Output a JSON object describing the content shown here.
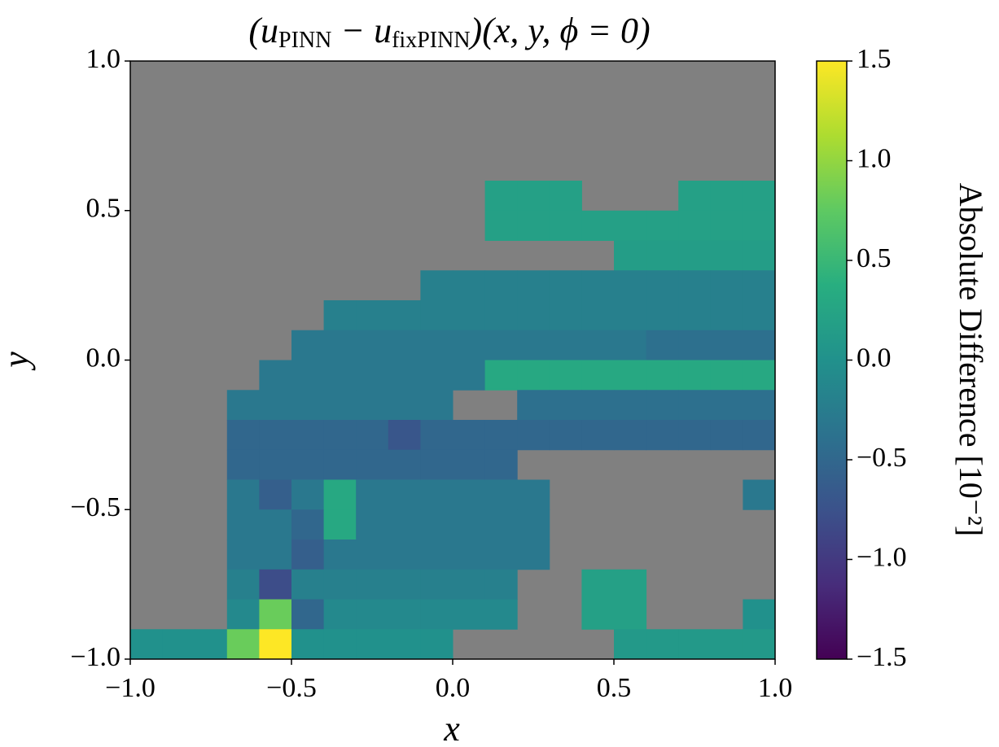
{
  "chart_data": {
    "type": "heatmap",
    "title": [
      "(u",
      "PINN",
      " − u",
      "fixPINN",
      ")(x, y, ϕ = 0)"
    ],
    "x_label": "x",
    "y_label": "y",
    "colorbar_label": "Absolute Difference [10⁻²]",
    "colormap": "viridis",
    "nan_color": "#808080",
    "xlim": [
      -1.0,
      1.0
    ],
    "ylim": [
      -1.0,
      1.0
    ],
    "clim": [
      -1.5,
      1.5
    ],
    "xticks": [
      {
        "value": -1.0,
        "label": "−1.0"
      },
      {
        "value": -0.5,
        "label": "−0.5"
      },
      {
        "value": 0.0,
        "label": "0.0"
      },
      0.5,
      {
        "value": 1.0,
        "label": "1.0"
      }
    ],
    "yticks": [
      {
        "value": -1.0,
        "label": "−1.0"
      },
      {
        "value": -0.5,
        "label": "−0.5"
      },
      {
        "value": 0.0,
        "label": "0.0"
      },
      0.5,
      {
        "value": 1.0,
        "label": "1.0"
      }
    ],
    "cticks": [
      {
        "value": -1.5,
        "label": "−1.5"
      },
      {
        "value": -1.0,
        "label": "−1.0"
      },
      {
        "value": -0.5,
        "label": "−0.5"
      },
      {
        "value": 0.0,
        "label": "0.0"
      },
      0.5,
      {
        "value": 1.0,
        "label": "1.0"
      },
      1.5
    ],
    "x": [
      -0.95,
      -0.85,
      -0.75,
      -0.65,
      -0.55,
      -0.45,
      -0.35,
      -0.25,
      -0.15,
      -0.05,
      0.05,
      0.15,
      0.25,
      0.35,
      0.45,
      0.55,
      0.65,
      0.75,
      0.85,
      0.95
    ],
    "y": [
      0.95,
      0.85,
      0.75,
      0.65,
      0.55,
      0.45,
      0.35,
      0.25,
      0.15,
      0.05,
      -0.05,
      -0.15,
      -0.25,
      -0.35,
      -0.45,
      -0.55,
      -0.65,
      -0.75,
      -0.85,
      -0.95
    ],
    "z": [
      [
        null,
        null,
        null,
        null,
        null,
        null,
        null,
        null,
        null,
        null,
        null,
        null,
        null,
        null,
        null,
        null,
        null,
        null,
        null,
        null
      ],
      [
        null,
        null,
        null,
        null,
        null,
        null,
        null,
        null,
        null,
        null,
        null,
        null,
        null,
        null,
        null,
        null,
        null,
        null,
        null,
        null
      ],
      [
        null,
        null,
        null,
        null,
        null,
        null,
        null,
        null,
        null,
        null,
        null,
        null,
        null,
        null,
        null,
        null,
        null,
        null,
        null,
        null
      ],
      [
        null,
        null,
        null,
        null,
        null,
        null,
        null,
        null,
        null,
        null,
        null,
        null,
        null,
        null,
        null,
        null,
        null,
        null,
        null,
        null
      ],
      [
        null,
        null,
        null,
        null,
        null,
        null,
        null,
        null,
        null,
        null,
        null,
        0.2,
        0.2,
        0.2,
        null,
        null,
        null,
        0.2,
        0.2,
        0.2
      ],
      [
        null,
        null,
        null,
        null,
        null,
        null,
        null,
        null,
        null,
        null,
        null,
        0.2,
        0.2,
        0.2,
        0.2,
        0.2,
        0.2,
        0.2,
        0.2,
        0.2
      ],
      [
        null,
        null,
        null,
        null,
        null,
        null,
        null,
        null,
        null,
        null,
        null,
        null,
        null,
        null,
        null,
        0.15,
        0.15,
        0.15,
        0.15,
        0.15
      ],
      [
        null,
        null,
        null,
        null,
        null,
        null,
        null,
        null,
        null,
        -0.2,
        -0.2,
        -0.2,
        -0.2,
        -0.2,
        -0.2,
        -0.2,
        -0.2,
        -0.2,
        -0.2,
        -0.2
      ],
      [
        null,
        null,
        null,
        null,
        null,
        null,
        -0.2,
        -0.2,
        -0.2,
        -0.2,
        -0.2,
        -0.2,
        -0.2,
        -0.2,
        -0.2,
        -0.2,
        -0.2,
        -0.2,
        -0.2,
        -0.2
      ],
      [
        null,
        null,
        null,
        null,
        null,
        -0.3,
        -0.3,
        -0.3,
        -0.3,
        -0.3,
        -0.3,
        -0.3,
        -0.3,
        -0.3,
        -0.3,
        -0.3,
        -0.4,
        -0.4,
        -0.4,
        -0.4
      ],
      [
        null,
        null,
        null,
        null,
        -0.3,
        -0.3,
        -0.3,
        -0.3,
        -0.3,
        -0.3,
        -0.3,
        0.3,
        0.3,
        0.3,
        0.3,
        0.3,
        0.3,
        0.3,
        0.3,
        0.3
      ],
      [
        null,
        null,
        null,
        -0.3,
        -0.3,
        -0.3,
        -0.3,
        -0.3,
        -0.3,
        -0.3,
        null,
        null,
        -0.4,
        -0.4,
        -0.4,
        -0.4,
        -0.4,
        -0.4,
        -0.4,
        -0.4
      ],
      [
        null,
        null,
        null,
        -0.5,
        -0.5,
        -0.5,
        -0.5,
        -0.5,
        -0.7,
        -0.5,
        -0.5,
        -0.5,
        -0.5,
        -0.5,
        -0.5,
        -0.5,
        -0.5,
        -0.5,
        -0.5,
        -0.5
      ],
      [
        null,
        null,
        null,
        -0.5,
        -0.5,
        -0.5,
        -0.5,
        -0.5,
        -0.5,
        -0.5,
        -0.5,
        -0.5,
        null,
        null,
        null,
        null,
        null,
        null,
        null,
        null
      ],
      [
        null,
        null,
        null,
        -0.3,
        -0.6,
        -0.3,
        0.3,
        -0.3,
        -0.3,
        -0.3,
        -0.3,
        -0.3,
        -0.3,
        null,
        null,
        null,
        null,
        null,
        null,
        -0.3
      ],
      [
        null,
        null,
        null,
        -0.3,
        -0.3,
        -0.5,
        0.3,
        -0.3,
        -0.3,
        -0.3,
        -0.3,
        -0.3,
        -0.3,
        null,
        null,
        null,
        null,
        null,
        null,
        null
      ],
      [
        null,
        null,
        null,
        -0.3,
        -0.3,
        -0.6,
        -0.3,
        -0.3,
        -0.3,
        -0.3,
        -0.3,
        -0.3,
        -0.3,
        null,
        null,
        null,
        null,
        null,
        null,
        null
      ],
      [
        null,
        null,
        null,
        -0.2,
        -0.8,
        -0.2,
        -0.2,
        -0.2,
        -0.2,
        -0.2,
        -0.2,
        -0.2,
        null,
        null,
        0.2,
        0.2,
        null,
        null,
        null,
        null
      ],
      [
        null,
        null,
        null,
        -0.1,
        0.8,
        -0.5,
        -0.1,
        -0.1,
        -0.1,
        -0.1,
        -0.1,
        -0.1,
        null,
        null,
        0.2,
        0.2,
        null,
        null,
        null,
        0.0
      ],
      [
        0.0,
        0.0,
        0.0,
        0.8,
        1.5,
        0.0,
        0.0,
        0.0,
        0.0,
        0.0,
        null,
        null,
        null,
        null,
        null,
        0.1,
        0.1,
        0.1,
        0.1,
        0.1
      ]
    ]
  }
}
